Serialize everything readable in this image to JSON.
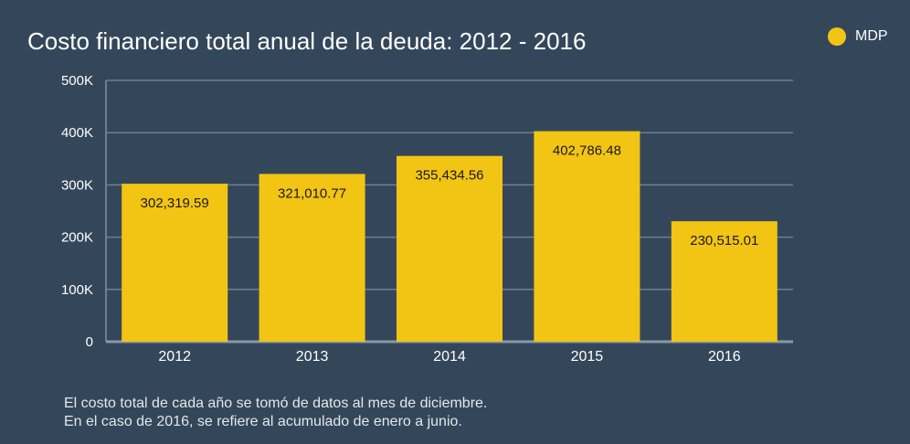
{
  "chart_data": {
    "type": "bar",
    "title": "Costo financiero total anual de la deuda: 2012 - 2016",
    "categories": [
      "2012",
      "2013",
      "2014",
      "2015",
      "2016"
    ],
    "series": [
      {
        "name": "MDP",
        "color": "#f2c414",
        "values": [
          302319.59,
          321010.77,
          355434.56,
          402786.48,
          230515.01
        ],
        "labels": [
          "302,319.59",
          "321,010.77",
          "355,434.56",
          "402,786.48",
          "230,515.01"
        ]
      }
    ],
    "ylim": [
      0,
      500000
    ],
    "yticks": [
      0,
      100000,
      200000,
      300000,
      400000,
      500000
    ],
    "ytick_labels": [
      "0",
      "100K",
      "200K",
      "300K",
      "400K",
      "500K"
    ],
    "grid": true,
    "legend_position": "top-right"
  },
  "legend": {
    "label": "MDP"
  },
  "notes": [
    "El costo total de cada año se tomó de datos al mes de diciembre.",
    "En el caso de 2016, se refiere al acumulado de enero a junio."
  ],
  "colors": {
    "background": "#34475a",
    "bar": "#f2c414",
    "grid": "#6d7f90",
    "text": "#ffffff"
  }
}
